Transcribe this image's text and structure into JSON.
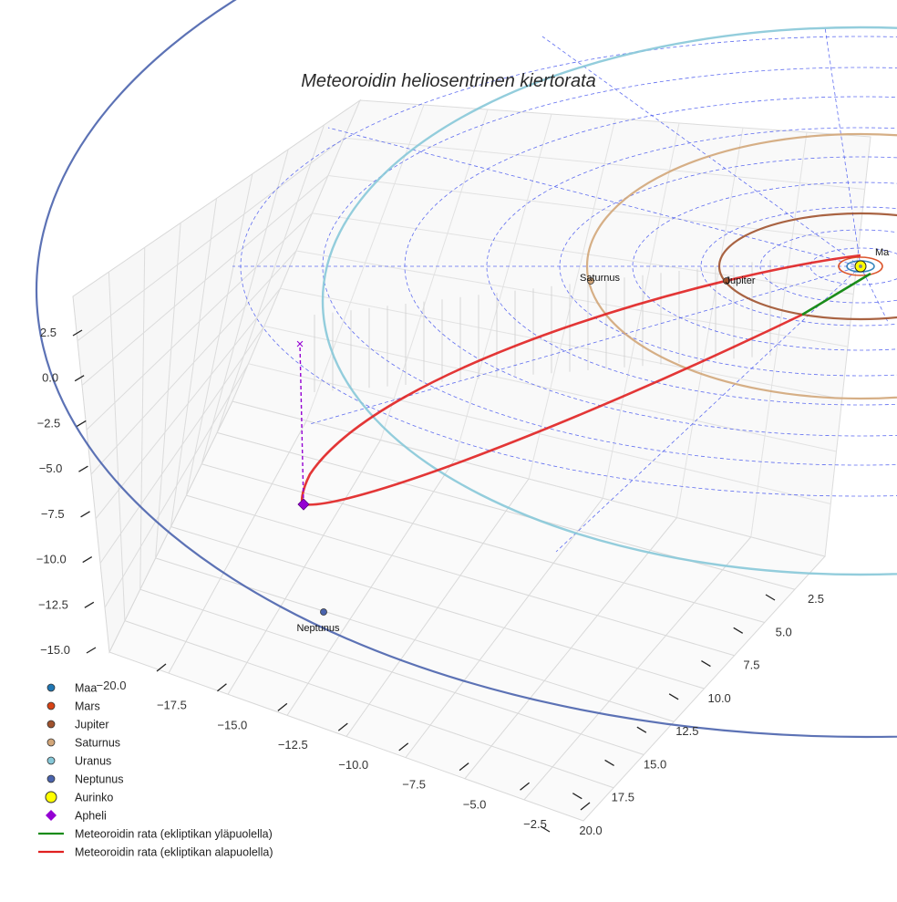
{
  "chart_data": {
    "type": "scatter",
    "projection": "3d",
    "title": "Meteoroidin heliosentrinen kiertorata",
    "x_axis": {
      "label": "",
      "ticks": [
        -20.0,
        -17.5,
        -15.0,
        -12.5,
        -10.0,
        -7.5,
        -5.0,
        -2.5
      ],
      "tick_labels": [
        "−20.0",
        "−17.5",
        "−15.0",
        "−12.5",
        "−10.0",
        "−7.5",
        "−5.0",
        "−2.5"
      ]
    },
    "y_axis": {
      "label": "",
      "ticks": [
        2.5,
        5.0,
        7.5,
        10.0,
        12.5,
        15.0,
        17.5,
        20.0
      ],
      "tick_labels": [
        "2.5",
        "5.0",
        "7.5",
        "10.0",
        "12.5",
        "15.0",
        "17.5",
        "20.0"
      ]
    },
    "z_axis": {
      "label": "",
      "ticks": [
        2.5,
        0.0,
        -2.5,
        -5.0,
        -7.5,
        -10.0,
        -12.5,
        -15.0
      ],
      "tick_labels": [
        "2.5",
        "0.0",
        "−2.5",
        "−5.0",
        "−7.5",
        "−10.0",
        "−12.5",
        "−15.0"
      ]
    },
    "bodies": [
      {
        "name": "Maa",
        "label": "Maa",
        "orbit_radius_au": 1.0,
        "color": "#1f77b4",
        "visible_label": "Ma"
      },
      {
        "name": "Mars",
        "label": "Mars",
        "orbit_radius_au": 1.52,
        "color": "#d84315"
      },
      {
        "name": "Jupiter",
        "label": "Jupiter",
        "orbit_radius_au": 5.2,
        "color": "#a0522d"
      },
      {
        "name": "Saturnus",
        "label": "Saturnus",
        "orbit_radius_au": 9.58,
        "color": "#d2a679"
      },
      {
        "name": "Uranus",
        "label": "Uranus",
        "orbit_radius_au": 19.2,
        "color": "#87c8d8"
      },
      {
        "name": "Neptunus",
        "label": "Neptunus",
        "orbit_radius_au": 30.1,
        "color": "#4a63ad"
      },
      {
        "name": "Aurinko",
        "label": "Aurinko",
        "orbit_radius_au": 0,
        "color": "#ffff00"
      }
    ],
    "aphelion": {
      "label": "Apheli",
      "z_au": -8.6,
      "color": "#9400d3",
      "projection_marker": "×"
    },
    "series": [
      {
        "name": "Meteoroidin rata (ekliptikan yläpuolella)",
        "color": "#1a8c1a",
        "type": "line"
      },
      {
        "name": "Meteoroidin rata (ekliptikan alapuolella)",
        "color": "#e02020",
        "type": "line"
      }
    ],
    "legend": {
      "position": "bottom-left",
      "entries": [
        {
          "label": "Maa",
          "marker": "dot",
          "color": "#1f77b4"
        },
        {
          "label": "Mars",
          "marker": "dot",
          "color": "#d84315"
        },
        {
          "label": "Jupiter",
          "marker": "dot",
          "color": "#a0522d"
        },
        {
          "label": "Saturnus",
          "marker": "dot",
          "color": "#d2a679"
        },
        {
          "label": "Uranus",
          "marker": "dot",
          "color": "#87c8d8"
        },
        {
          "label": "Neptunus",
          "marker": "dot",
          "color": "#4a63ad"
        },
        {
          "label": "Aurinko",
          "marker": "bigdot",
          "color": "#ffff00"
        },
        {
          "label": "Apheli",
          "marker": "diamond",
          "color": "#9400d3"
        },
        {
          "label": "Meteoroidin rata (ekliptikan yläpuolella)",
          "marker": "line",
          "color": "#1a8c1a"
        },
        {
          "label": "Meteoroidin rata (ekliptikan alapuolella)",
          "marker": "line",
          "color": "#e02020"
        }
      ]
    },
    "grid": true
  }
}
